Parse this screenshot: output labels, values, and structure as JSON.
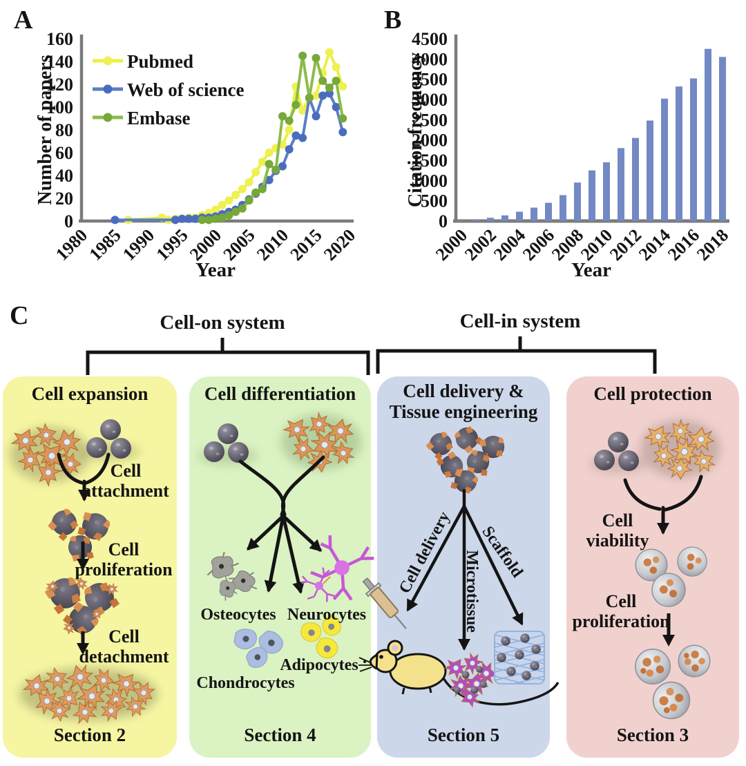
{
  "figure": {
    "panel_a": "A",
    "panel_b": "B"
  },
  "colors": {
    "axis": "#7b7b7b",
    "text": "#141414",
    "pubmed_line": "#edef3e",
    "pubmed_marker": "#eef151",
    "web_of_science_line": "#5b7ec6",
    "web_of_science_marker": "#4a6cbe",
    "embase_line": "#8cbb4a",
    "embase_marker": "#77a83a",
    "bar_fill": "#7289c4",
    "panel_expansion_bg": "#f5f5a2",
    "panel_differentiation_bg": "#dbf2c2",
    "panel_delivery_bg": "#cdd7ea",
    "panel_protection_bg": "#f1d1ce"
  },
  "chart_data": [
    {
      "id": "papers_by_year",
      "type": "line",
      "title": "",
      "xlabel": "Year",
      "ylabel": "Number of papers",
      "xlim": [
        1980,
        2020
      ],
      "ylim": [
        0,
        160
      ],
      "yticks": [
        0,
        20,
        40,
        60,
        80,
        100,
        120,
        140,
        160
      ],
      "xticks": [
        1980,
        1985,
        1990,
        1995,
        2000,
        2005,
        2010,
        2015,
        2020
      ],
      "grid": false,
      "legend_position": "upper-left-inside",
      "series": [
        {
          "name": "Pubmed",
          "color": "#edef3e",
          "marker_color": "#eef151",
          "x": [
            1987,
            1992,
            1993,
            1994,
            1995,
            1996,
            1997,
            1998,
            1999,
            2000,
            2001,
            2002,
            2003,
            2004,
            2005,
            2006,
            2007,
            2008,
            2009,
            2010,
            2011,
            2012,
            2013,
            2014,
            2015,
            2016,
            2017,
            2018,
            2019
          ],
          "values": [
            1,
            3,
            1,
            2,
            2,
            3,
            3,
            5,
            7,
            10,
            14,
            18,
            23,
            28,
            34,
            43,
            52,
            60,
            64,
            67,
            80,
            118,
            97,
            108,
            110,
            130,
            148,
            135,
            118
          ]
        },
        {
          "name": "Web of science",
          "color": "#5b7ec6",
          "marker_color": "#4a6cbe",
          "x": [
            1985,
            1994,
            1995,
            1996,
            1997,
            1998,
            1999,
            2000,
            2001,
            2002,
            2003,
            2004,
            2005,
            2006,
            2007,
            2008,
            2009,
            2010,
            2011,
            2012,
            2013,
            2014,
            2015,
            2016,
            2017,
            2018,
            2019
          ],
          "values": [
            1,
            1,
            2,
            2,
            2,
            3,
            3,
            4,
            6,
            8,
            10,
            14,
            19,
            24,
            30,
            36,
            44,
            48,
            63,
            75,
            73,
            108,
            92,
            110,
            112,
            100,
            78
          ]
        },
        {
          "name": "Embase",
          "color": "#8cbb4a",
          "marker_color": "#77a83a",
          "x": [
            1998,
            1999,
            2000,
            2001,
            2002,
            2003,
            2004,
            2005,
            2006,
            2007,
            2008,
            2009,
            2010,
            2011,
            2012,
            2013,
            2014,
            2015,
            2016,
            2017,
            2018,
            2019
          ],
          "values": [
            1,
            1,
            2,
            3,
            5,
            8,
            11,
            18,
            25,
            28,
            50,
            45,
            92,
            88,
            102,
            145,
            108,
            143,
            123,
            117,
            123,
            90
          ]
        }
      ]
    },
    {
      "id": "citation_frequency",
      "type": "bar",
      "title": "",
      "xlabel": "Year",
      "ylabel": "Citation frequency",
      "ylim": [
        0,
        4500
      ],
      "yticks": [
        0,
        500,
        1000,
        1500,
        2000,
        2500,
        3000,
        3500,
        4000,
        4500
      ],
      "categories": [
        2000,
        2001,
        2002,
        2003,
        2004,
        2005,
        2006,
        2007,
        2008,
        2009,
        2010,
        2011,
        2012,
        2013,
        2014,
        2015,
        2016,
        2017,
        2018
      ],
      "xtick_labels": [
        "2000",
        "2002",
        "2004",
        "2006",
        "2008",
        "2010",
        "2012",
        "2014",
        "2016",
        "2018"
      ],
      "values": [
        15,
        30,
        80,
        140,
        230,
        330,
        450,
        640,
        950,
        1250,
        1450,
        1800,
        2050,
        2480,
        3020,
        3320,
        3520,
        4250,
        4050
      ],
      "bar_color": "#7289c4",
      "grid": false
    }
  ],
  "diagram": {
    "panel_label": "C",
    "group_on": {
      "title": "Cell-on system"
    },
    "group_in": {
      "title": "Cell-in system"
    },
    "expansion": {
      "title": "Cell expansion",
      "step1": "Cell attachment",
      "step2": "Cell proliferation",
      "step3": "Cell detachment",
      "section": "Section 2"
    },
    "differentiation": {
      "title": "Cell differentiation",
      "type1": "Osteocytes",
      "type2": "Neurocytes",
      "type3": "Chondrocytes",
      "type4": "Adipocytes",
      "section": "Section 4"
    },
    "delivery": {
      "title1": "Cell delivery &",
      "title2": "Tissue engineering",
      "route1": "Cell delivery",
      "route2": "Microtissue",
      "route3": "Scaffold",
      "section": "Section 5"
    },
    "protection": {
      "title": "Cell protection",
      "step1": "Cell viability",
      "step2": "Cell proliferation",
      "section": "Section 3"
    }
  }
}
